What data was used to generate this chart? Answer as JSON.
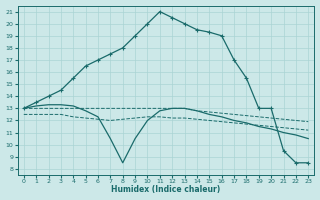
{
  "xlabel": "Humidex (Indice chaleur)",
  "bg_color": "#cce8e8",
  "line_color": "#1a6b6b",
  "grid_color": "#aad4d4",
  "xlim": [
    -0.5,
    23.5
  ],
  "ylim": [
    7.5,
    21.5
  ],
  "yticks": [
    8,
    9,
    10,
    11,
    12,
    13,
    14,
    15,
    16,
    17,
    18,
    19,
    20,
    21
  ],
  "xticks": [
    0,
    1,
    2,
    3,
    4,
    5,
    6,
    7,
    8,
    9,
    10,
    11,
    12,
    13,
    14,
    15,
    16,
    17,
    18,
    19,
    20,
    21,
    22,
    23
  ],
  "lines": [
    {
      "x": [
        0,
        1,
        2,
        3,
        4,
        5,
        6,
        7,
        8,
        9,
        10,
        11,
        12,
        13,
        14,
        15,
        16,
        17,
        18,
        19,
        20,
        21,
        22,
        23
      ],
      "y": [
        13.0,
        13.5,
        14.0,
        14.5,
        15.5,
        16.5,
        17.0,
        17.5,
        18.0,
        19.0,
        20.0,
        21.0,
        20.5,
        20.0,
        19.5,
        19.3,
        19.0,
        17.0,
        15.5,
        13.0,
        13.0,
        9.5,
        8.5,
        8.5
      ],
      "style": "-",
      "marker": "+"
    },
    {
      "x": [
        0,
        1,
        2,
        3,
        4,
        5,
        6,
        7,
        8,
        9,
        10,
        11,
        12,
        13,
        14,
        15,
        16,
        17,
        18,
        19,
        20,
        21,
        22,
        23
      ],
      "y": [
        13.0,
        13.0,
        13.0,
        13.0,
        13.0,
        13.0,
        13.0,
        13.0,
        13.0,
        13.0,
        13.0,
        13.0,
        13.0,
        13.0,
        12.8,
        12.7,
        12.6,
        12.5,
        12.4,
        12.3,
        12.2,
        12.1,
        12.0,
        11.9
      ],
      "style": "--",
      "marker": null
    },
    {
      "x": [
        0,
        1,
        2,
        3,
        4,
        5,
        6,
        7,
        8,
        9,
        10,
        11,
        12,
        13,
        14,
        15,
        16,
        17,
        18,
        19,
        20,
        21,
        22,
        23
      ],
      "y": [
        12.5,
        12.5,
        12.5,
        12.5,
        12.3,
        12.2,
        12.1,
        12.0,
        12.1,
        12.2,
        12.3,
        12.3,
        12.2,
        12.2,
        12.1,
        12.0,
        11.9,
        11.8,
        11.7,
        11.6,
        11.5,
        11.4,
        11.3,
        11.2
      ],
      "style": "--",
      "marker": null
    },
    {
      "x": [
        0,
        1,
        2,
        3,
        4,
        5,
        6,
        7,
        8,
        9,
        10,
        11,
        12,
        13,
        14,
        15,
        16,
        17,
        18,
        19,
        20,
        21,
        22,
        23
      ],
      "y": [
        13.0,
        13.2,
        13.3,
        13.3,
        13.2,
        12.8,
        12.3,
        10.5,
        8.5,
        10.5,
        12.0,
        12.8,
        13.0,
        13.0,
        12.8,
        12.5,
        12.3,
        12.0,
        11.8,
        11.5,
        11.3,
        11.0,
        10.8,
        10.5
      ],
      "style": "-",
      "marker": null
    }
  ]
}
